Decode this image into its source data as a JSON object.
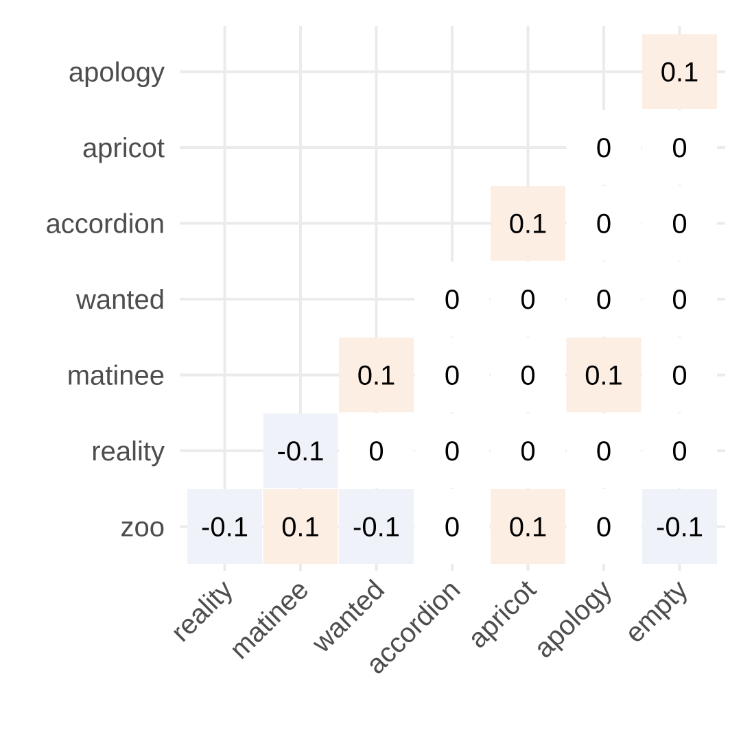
{
  "chart_data": {
    "type": "heatmap",
    "title": "",
    "xlabel": "",
    "ylabel": "",
    "x_categories": [
      "reality",
      "matinee",
      "wanted",
      "accordion",
      "apricot",
      "apology",
      "empty"
    ],
    "y_categories": [
      "zoo",
      "reality",
      "matinee",
      "wanted",
      "accordion",
      "apricot",
      "apology"
    ],
    "cells": [
      {
        "x": "reality",
        "y": "zoo",
        "value": -0.1,
        "label": "-0.1"
      },
      {
        "x": "matinee",
        "y": "zoo",
        "value": 0.1,
        "label": "0.1"
      },
      {
        "x": "wanted",
        "y": "zoo",
        "value": -0.1,
        "label": "-0.1"
      },
      {
        "x": "accordion",
        "y": "zoo",
        "value": 0,
        "label": "0"
      },
      {
        "x": "apricot",
        "y": "zoo",
        "value": 0.1,
        "label": "0.1"
      },
      {
        "x": "apology",
        "y": "zoo",
        "value": 0,
        "label": "0"
      },
      {
        "x": "empty",
        "y": "zoo",
        "value": -0.1,
        "label": "-0.1"
      },
      {
        "x": "matinee",
        "y": "reality",
        "value": -0.1,
        "label": "-0.1"
      },
      {
        "x": "wanted",
        "y": "reality",
        "value": 0,
        "label": "0"
      },
      {
        "x": "accordion",
        "y": "reality",
        "value": 0,
        "label": "0"
      },
      {
        "x": "apricot",
        "y": "reality",
        "value": 0,
        "label": "0"
      },
      {
        "x": "apology",
        "y": "reality",
        "value": 0,
        "label": "0"
      },
      {
        "x": "empty",
        "y": "reality",
        "value": 0,
        "label": "0"
      },
      {
        "x": "wanted",
        "y": "matinee",
        "value": 0.1,
        "label": "0.1"
      },
      {
        "x": "accordion",
        "y": "matinee",
        "value": 0,
        "label": "0"
      },
      {
        "x": "apricot",
        "y": "matinee",
        "value": 0,
        "label": "0"
      },
      {
        "x": "apology",
        "y": "matinee",
        "value": 0.1,
        "label": "0.1"
      },
      {
        "x": "empty",
        "y": "matinee",
        "value": 0,
        "label": "0"
      },
      {
        "x": "accordion",
        "y": "wanted",
        "value": 0,
        "label": "0"
      },
      {
        "x": "apricot",
        "y": "wanted",
        "value": 0,
        "label": "0"
      },
      {
        "x": "apology",
        "y": "wanted",
        "value": 0,
        "label": "0"
      },
      {
        "x": "empty",
        "y": "wanted",
        "value": 0,
        "label": "0"
      },
      {
        "x": "apricot",
        "y": "accordion",
        "value": 0.1,
        "label": "0.1"
      },
      {
        "x": "apology",
        "y": "accordion",
        "value": 0,
        "label": "0"
      },
      {
        "x": "empty",
        "y": "accordion",
        "value": 0,
        "label": "0"
      },
      {
        "x": "apology",
        "y": "apricot",
        "value": 0,
        "label": "0"
      },
      {
        "x": "empty",
        "y": "apricot",
        "value": 0,
        "label": "0"
      },
      {
        "x": "empty",
        "y": "apology",
        "value": 0.1,
        "label": "0.1"
      }
    ],
    "colors": {
      "positive": "#fdeee4",
      "negative": "#eff3f9",
      "zero": "#ffffff",
      "grid": "#ebebeb",
      "tick_text": "#4d4d4d",
      "cell_text": "#000000"
    },
    "grid": true,
    "legend": "none"
  }
}
